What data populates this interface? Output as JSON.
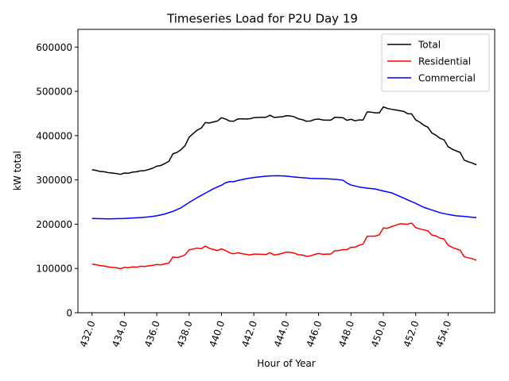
{
  "chart_data": {
    "type": "line",
    "title": "Timeseries Load for P2U   Day 19",
    "xlabel": "Hour of Year",
    "ylabel": "kW total",
    "xlim": [
      431.13,
      456.88
    ],
    "ylim": [
      0,
      640000
    ],
    "xticks": [
      432,
      434,
      436,
      438,
      440,
      442,
      444,
      446,
      448,
      450,
      452,
      454
    ],
    "xtick_labels": [
      "432.0",
      "434.0",
      "436.0",
      "438.0",
      "440.0",
      "442.0",
      "444.0",
      "446.0",
      "448.0",
      "450.0",
      "452.0",
      "454.0"
    ],
    "yticks": [
      0,
      100000,
      200000,
      300000,
      400000,
      500000,
      600000
    ],
    "ytick_labels": [
      "0",
      "100000",
      "200000",
      "300000",
      "400000",
      "500000",
      "600000"
    ],
    "legend_position": "top-right",
    "series": [
      {
        "name": "Total",
        "color": "#000000",
        "points": [
          [
            432.0,
            323000
          ],
          [
            432.25,
            321500
          ],
          [
            432.5,
            319000
          ],
          [
            432.75,
            318500
          ],
          [
            433.0,
            316500
          ],
          [
            433.25,
            315500
          ],
          [
            433.5,
            314500
          ],
          [
            433.75,
            312500
          ],
          [
            434.0,
            315500
          ],
          [
            434.25,
            315000
          ],
          [
            434.5,
            317500
          ],
          [
            434.75,
            318500
          ],
          [
            435.0,
            320500
          ],
          [
            435.25,
            321000
          ],
          [
            435.5,
            323500
          ],
          [
            435.75,
            326500
          ],
          [
            436.0,
            331000
          ],
          [
            436.25,
            332500
          ],
          [
            436.5,
            337000
          ],
          [
            436.75,
            342000
          ],
          [
            437.0,
            359000
          ],
          [
            437.25,
            362000
          ],
          [
            437.5,
            368500
          ],
          [
            437.75,
            377500
          ],
          [
            438.0,
            396500
          ],
          [
            438.25,
            404500
          ],
          [
            438.5,
            412500
          ],
          [
            438.75,
            417000
          ],
          [
            439.0,
            429500
          ],
          [
            439.25,
            428500
          ],
          [
            439.5,
            431000
          ],
          [
            439.75,
            433000
          ],
          [
            440.0,
            440500
          ],
          [
            440.25,
            437500
          ],
          [
            440.5,
            433000
          ],
          [
            440.75,
            432500
          ],
          [
            441.0,
            437500
          ],
          [
            441.25,
            438000
          ],
          [
            441.5,
            437500
          ],
          [
            441.75,
            438000
          ],
          [
            442.0,
            440500
          ],
          [
            442.25,
            441000
          ],
          [
            442.5,
            441500
          ],
          [
            442.75,
            441500
          ],
          [
            443.0,
            446000
          ],
          [
            443.25,
            441000
          ],
          [
            443.5,
            442000
          ],
          [
            443.75,
            442500
          ],
          [
            444.0,
            445000
          ],
          [
            444.25,
            444500
          ],
          [
            444.5,
            442500
          ],
          [
            444.75,
            438000
          ],
          [
            445.0,
            436000
          ],
          [
            445.25,
            432500
          ],
          [
            445.5,
            433000
          ],
          [
            445.75,
            436500
          ],
          [
            446.0,
            437500
          ],
          [
            446.25,
            435500
          ],
          [
            446.5,
            435000
          ],
          [
            446.75,
            435000
          ],
          [
            447.0,
            441500
          ],
          [
            447.25,
            441000
          ],
          [
            447.5,
            440500
          ],
          [
            447.75,
            434500
          ],
          [
            448.0,
            437000
          ],
          [
            448.25,
            433500
          ],
          [
            448.5,
            435500
          ],
          [
            448.75,
            435500
          ],
          [
            449.0,
            453500
          ],
          [
            449.25,
            453000
          ],
          [
            449.5,
            451500
          ],
          [
            449.75,
            451500
          ],
          [
            450.0,
            465000
          ],
          [
            450.25,
            461500
          ],
          [
            450.5,
            459500
          ],
          [
            450.75,
            458000
          ],
          [
            451.0,
            456500
          ],
          [
            451.25,
            455000
          ],
          [
            451.5,
            449500
          ],
          [
            451.75,
            449000
          ],
          [
            452.0,
            435500
          ],
          [
            452.25,
            430500
          ],
          [
            452.5,
            423500
          ],
          [
            452.75,
            419000
          ],
          [
            453.0,
            406000
          ],
          [
            453.25,
            401000
          ],
          [
            453.5,
            394000
          ],
          [
            453.75,
            390500
          ],
          [
            454.0,
            375000
          ],
          [
            454.25,
            369500
          ],
          [
            454.5,
            365500
          ],
          [
            454.75,
            362000
          ],
          [
            455.0,
            344500
          ],
          [
            455.25,
            341000
          ],
          [
            455.5,
            338000
          ],
          [
            455.75,
            334000
          ]
        ]
      },
      {
        "name": "Residential",
        "color": "#ff0000",
        "points": [
          [
            432.0,
            109500
          ],
          [
            432.25,
            108500
          ],
          [
            432.5,
            106500
          ],
          [
            432.75,
            105500
          ],
          [
            433.0,
            103500
          ],
          [
            433.25,
            102500
          ],
          [
            433.5,
            101500
          ],
          [
            433.75,
            99500
          ],
          [
            434.0,
            102500
          ],
          [
            434.25,
            101500
          ],
          [
            434.5,
            103500
          ],
          [
            434.75,
            103000
          ],
          [
            435.0,
            105000
          ],
          [
            435.25,
            104500
          ],
          [
            435.5,
            106000
          ],
          [
            435.75,
            107000
          ],
          [
            436.0,
            109000
          ],
          [
            436.25,
            108000
          ],
          [
            436.5,
            110500
          ],
          [
            436.75,
            112000
          ],
          [
            437.0,
            126000
          ],
          [
            437.25,
            124500
          ],
          [
            437.5,
            127000
          ],
          [
            437.75,
            130500
          ],
          [
            438.0,
            142000
          ],
          [
            438.25,
            144000
          ],
          [
            438.5,
            146000
          ],
          [
            438.75,
            144500
          ],
          [
            439.0,
            150500
          ],
          [
            439.25,
            145500
          ],
          [
            439.5,
            143000
          ],
          [
            439.75,
            140500
          ],
          [
            440.0,
            144500
          ],
          [
            440.25,
            140500
          ],
          [
            440.5,
            135500
          ],
          [
            440.75,
            133000
          ],
          [
            441.0,
            135500
          ],
          [
            441.25,
            133500
          ],
          [
            441.5,
            132000
          ],
          [
            441.75,
            130500
          ],
          [
            442.0,
            132500
          ],
          [
            442.25,
            132500
          ],
          [
            442.5,
            132000
          ],
          [
            442.75,
            131500
          ],
          [
            443.0,
            135500
          ],
          [
            443.25,
            130500
          ],
          [
            443.5,
            132000
          ],
          [
            443.75,
            134000
          ],
          [
            444.0,
            137000
          ],
          [
            444.25,
            136500
          ],
          [
            444.5,
            134500
          ],
          [
            444.75,
            131000
          ],
          [
            445.0,
            130500
          ],
          [
            445.25,
            127500
          ],
          [
            445.5,
            128500
          ],
          [
            445.75,
            131500
          ],
          [
            446.0,
            134000
          ],
          [
            446.25,
            132000
          ],
          [
            446.5,
            132500
          ],
          [
            446.75,
            132500
          ],
          [
            447.0,
            140000
          ],
          [
            447.25,
            140500
          ],
          [
            447.5,
            142500
          ],
          [
            447.75,
            142500
          ],
          [
            448.0,
            148000
          ],
          [
            448.25,
            148000
          ],
          [
            448.5,
            152500
          ],
          [
            448.75,
            155000
          ],
          [
            449.0,
            172500
          ],
          [
            449.25,
            173000
          ],
          [
            449.5,
            173000
          ],
          [
            449.75,
            176000
          ],
          [
            450.0,
            191500
          ],
          [
            450.25,
            190500
          ],
          [
            450.5,
            194500
          ],
          [
            450.75,
            197500
          ],
          [
            451.0,
            200500
          ],
          [
            451.25,
            200500
          ],
          [
            451.5,
            200000
          ],
          [
            451.75,
            202500
          ],
          [
            452.0,
            192000
          ],
          [
            452.25,
            189500
          ],
          [
            452.5,
            187000
          ],
          [
            452.75,
            185000
          ],
          [
            453.0,
            175500
          ],
          [
            453.25,
            173500
          ],
          [
            453.5,
            168500
          ],
          [
            453.75,
            166500
          ],
          [
            454.0,
            152500
          ],
          [
            454.25,
            147500
          ],
          [
            454.5,
            144500
          ],
          [
            454.75,
            141000
          ],
          [
            455.0,
            126500
          ],
          [
            455.25,
            124000
          ],
          [
            455.5,
            122000
          ],
          [
            455.75,
            118500
          ]
        ]
      },
      {
        "name": "Commercial",
        "color": "#0000ff",
        "points": [
          [
            432.0,
            213000
          ],
          [
            432.5,
            212500
          ],
          [
            433.0,
            212000
          ],
          [
            433.5,
            212500
          ],
          [
            434.0,
            213000
          ],
          [
            434.5,
            214000
          ],
          [
            435.0,
            215000
          ],
          [
            435.5,
            216500
          ],
          [
            436.0,
            219000
          ],
          [
            436.5,
            223000
          ],
          [
            437.0,
            229000
          ],
          [
            437.5,
            237000
          ],
          [
            438.0,
            249000
          ],
          [
            438.5,
            260000
          ],
          [
            439.0,
            270000
          ],
          [
            439.5,
            280000
          ],
          [
            440.0,
            288000
          ],
          [
            440.25,
            293500
          ],
          [
            440.5,
            296000
          ],
          [
            440.75,
            296000
          ],
          [
            441.0,
            298500
          ],
          [
            441.5,
            302500
          ],
          [
            442.0,
            305500
          ],
          [
            442.5,
            307500
          ],
          [
            443.0,
            309000
          ],
          [
            443.5,
            309500
          ],
          [
            444.0,
            308500
          ],
          [
            444.5,
            306500
          ],
          [
            445.0,
            305000
          ],
          [
            445.5,
            303500
          ],
          [
            446.0,
            303000
          ],
          [
            446.5,
            302500
          ],
          [
            447.0,
            301500
          ],
          [
            447.5,
            299500
          ],
          [
            447.75,
            293000
          ],
          [
            448.0,
            288500
          ],
          [
            448.5,
            284000
          ],
          [
            449.0,
            281500
          ],
          [
            449.5,
            279500
          ],
          [
            450.0,
            275000
          ],
          [
            450.5,
            271000
          ],
          [
            451.0,
            263000
          ],
          [
            451.5,
            255000
          ],
          [
            452.0,
            247000
          ],
          [
            452.5,
            238000
          ],
          [
            453.0,
            232000
          ],
          [
            453.5,
            226000
          ],
          [
            454.0,
            222000
          ],
          [
            454.5,
            219000
          ],
          [
            455.0,
            217500
          ],
          [
            455.5,
            215500
          ],
          [
            455.75,
            215000
          ]
        ]
      }
    ]
  }
}
